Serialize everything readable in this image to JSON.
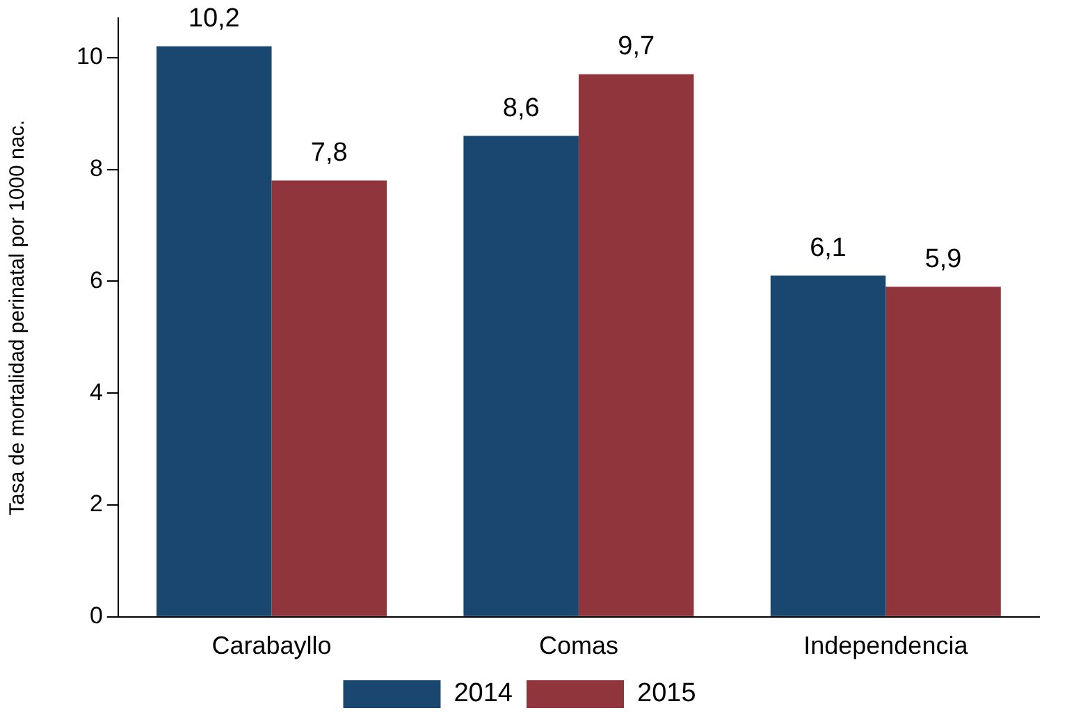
{
  "chart_data": {
    "type": "bar",
    "ylabel": "Tasa de mortalidad perinatal por 1000 nac.",
    "categories": [
      "Carabayllo",
      "Comas",
      "Independencia"
    ],
    "series": [
      {
        "name": "2014",
        "color": "#1a476f",
        "values": [
          10.2,
          8.6,
          6.1
        ],
        "value_labels": [
          "10,2",
          "8,6",
          "6,1"
        ]
      },
      {
        "name": "2015",
        "color": "#90353b",
        "values": [
          7.8,
          9.7,
          5.9
        ],
        "value_labels": [
          "7,8",
          "9,7",
          "5,9"
        ]
      }
    ],
    "ylim": [
      0,
      10.7
    ],
    "yticks": [
      0,
      2,
      4,
      6,
      8,
      10
    ],
    "grid": false,
    "legend": "bottom"
  }
}
